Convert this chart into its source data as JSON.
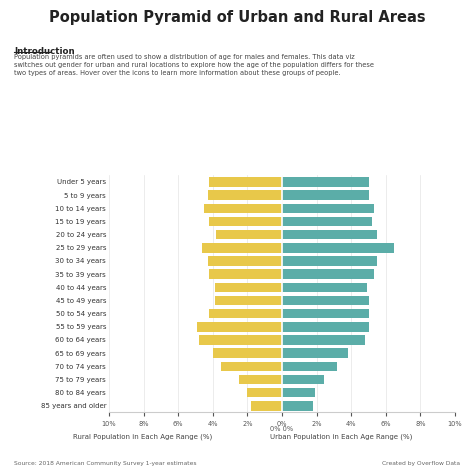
{
  "title": "Population Pyramid of Urban and Rural Areas",
  "intro_title": "Introduction",
  "intro_text": "Population pyramids are often used to show a distribution of age for males and females. This data viz\nswitches out gender for urban and rural locations to explore how the age of the population differs for these\ntwo types of areas. Hover over the icons to learn more information about these groups of people.",
  "source_text": "Source: 2018 American Community Survey 1-year estimates",
  "credit_text": "Created by Overflow Data",
  "age_labels": [
    "85 years and older",
    "80 to 84 years",
    "75 to 79 years",
    "70 to 74 years",
    "65 to 69 years",
    "60 to 64 years",
    "55 to 59 years",
    "50 to 54 years",
    "45 to 49 years",
    "40 to 44 years",
    "35 to 39 years",
    "30 to 34 years",
    "25 to 29 years",
    "20 to 24 years",
    "15 to 19 years",
    "10 to 14 years",
    "5 to 9 years",
    "Under 5 years"
  ],
  "rural": [
    1.8,
    2.0,
    2.5,
    3.5,
    4.0,
    4.8,
    4.9,
    4.2,
    3.9,
    3.9,
    4.2,
    4.3,
    4.6,
    3.8,
    4.2,
    4.5,
    4.3,
    4.2
  ],
  "urban": [
    1.8,
    1.9,
    2.4,
    3.2,
    3.8,
    4.8,
    5.0,
    5.0,
    5.0,
    4.9,
    5.3,
    5.5,
    6.5,
    5.5,
    5.2,
    5.3,
    5.0,
    5.0
  ],
  "rural_color": "#E8C84A",
  "urban_color": "#5BADA8",
  "background_color": "#FFFFFF",
  "xlim": 10,
  "xlabel_left": "Rural Population in Each Age Range (%)",
  "xlabel_right": "Urban Population in Each Age Range (%)"
}
